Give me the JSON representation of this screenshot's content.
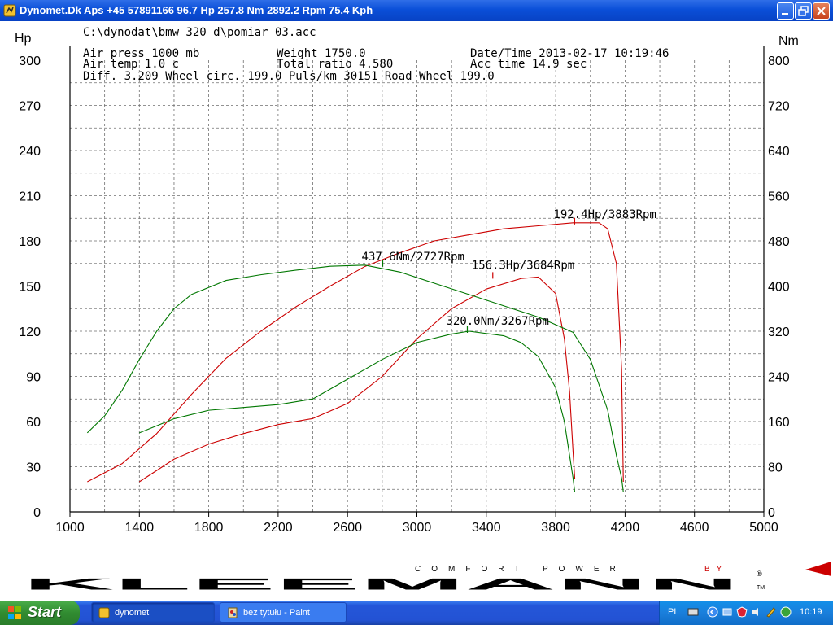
{
  "window": {
    "title": "Dynomet.Dk Aps +45 57891166  96.7 Hp 257.8 Nm 2892.2 Rpm 75.4 Kph"
  },
  "header": {
    "file_path": "C:\\dynodat\\bmw  320 d\\pomiar 03.acc",
    "air_press": "Air press  1000 mb",
    "weight": "Weight  1750.0",
    "datetime": "Date/Time  2013-02-17 10:19:46",
    "air_temp": "Air temp   1.0 c",
    "total_ratio": "Total ratio 4.580",
    "acc_time": "Acc time  14.9 sec",
    "diff_line": "Diff.   3.209  Wheel circ. 199.0  Puls/km  30151  Road Wheel 199.0"
  },
  "colors": {
    "power": "#cc0000",
    "torque": "#007700",
    "grid": "#6f6f6f"
  },
  "chart_data": {
    "type": "line",
    "ylabel_left": "Hp",
    "ylabel_right": "Nm",
    "xlim": [
      1000,
      5000
    ],
    "ylim_left": [
      0,
      300
    ],
    "ylim_right": [
      0,
      800
    ],
    "x_ticks": [
      "1000",
      "1400",
      "1800",
      "2200",
      "2600",
      "3000",
      "3400",
      "3800",
      "4200",
      "4600",
      "5000"
    ],
    "y_ticks_left": [
      "0",
      "30",
      "60",
      "90",
      "120",
      "150",
      "180",
      "210",
      "240",
      "270",
      "300"
    ],
    "y_ticks_right": [
      "0",
      "80",
      "160",
      "240",
      "320",
      "400",
      "480",
      "560",
      "640",
      "720",
      "800"
    ],
    "grid": true,
    "series": [
      {
        "axis": "left",
        "color": "#cc0000",
        "x": [
          1100,
          1300,
          1500,
          1700,
          1900,
          2100,
          2300,
          2500,
          2700,
          2900,
          3100,
          3300,
          3500,
          3700,
          3900,
          4050,
          4100,
          4150,
          4180,
          4190
        ],
        "y": [
          20,
          32,
          52,
          78,
          102,
          120,
          136,
          150,
          163,
          172,
          180,
          184,
          188,
          190,
          192,
          192,
          188,
          165,
          95,
          20
        ]
      },
      {
        "axis": "left",
        "color": "#cc0000",
        "x": [
          1400,
          1600,
          1800,
          2000,
          2200,
          2400,
          2600,
          2800,
          3000,
          3200,
          3400,
          3600,
          3700,
          3800,
          3850,
          3880,
          3900,
          3910
        ],
        "y": [
          20,
          35,
          45,
          52,
          58,
          62,
          72,
          90,
          115,
          135,
          148,
          155,
          156,
          145,
          115,
          80,
          40,
          22
        ]
      },
      {
        "axis": "right",
        "color": "#007700",
        "x": [
          1100,
          1200,
          1300,
          1400,
          1500,
          1600,
          1700,
          1900,
          2100,
          2300,
          2500,
          2700,
          2900,
          3100,
          3300,
          3500,
          3700,
          3900,
          4000,
          4100,
          4150,
          4180,
          4190
        ],
        "y": [
          140,
          170,
          215,
          270,
          320,
          360,
          385,
          410,
          420,
          428,
          435,
          437,
          425,
          405,
          385,
          365,
          345,
          318,
          270,
          180,
          100,
          60,
          35
        ]
      },
      {
        "axis": "right",
        "color": "#007700",
        "x": [
          1400,
          1600,
          1800,
          2000,
          2200,
          2400,
          2600,
          2800,
          3000,
          3200,
          3300,
          3500,
          3600,
          3700,
          3800,
          3850,
          3880,
          3900,
          3910
        ],
        "y": [
          140,
          165,
          180,
          185,
          190,
          200,
          235,
          270,
          300,
          315,
          320,
          312,
          300,
          275,
          220,
          160,
          100,
          60,
          35
        ]
      }
    ],
    "annotations": [
      {
        "text": "192.4Hp/3883Rpm",
        "color": "#cc0000"
      },
      {
        "text": "156.3Hp/3684Rpm",
        "color": "#cc0000"
      },
      {
        "text": "437.6Nm/2727Rpm",
        "color": "#007700"
      },
      {
        "text": "320.0Nm/3267Rpm",
        "color": "#007700"
      }
    ]
  },
  "logo": {
    "text": "KLEEMANN",
    "tagline": "COMFORT POWER",
    "by": "BY",
    "registered": "®",
    "tm": "TM"
  },
  "taskbar": {
    "start_label": "Start",
    "tasks": [
      "dynomet",
      "bez tytułu - Paint"
    ],
    "language": "PL",
    "clock": "10:19"
  }
}
